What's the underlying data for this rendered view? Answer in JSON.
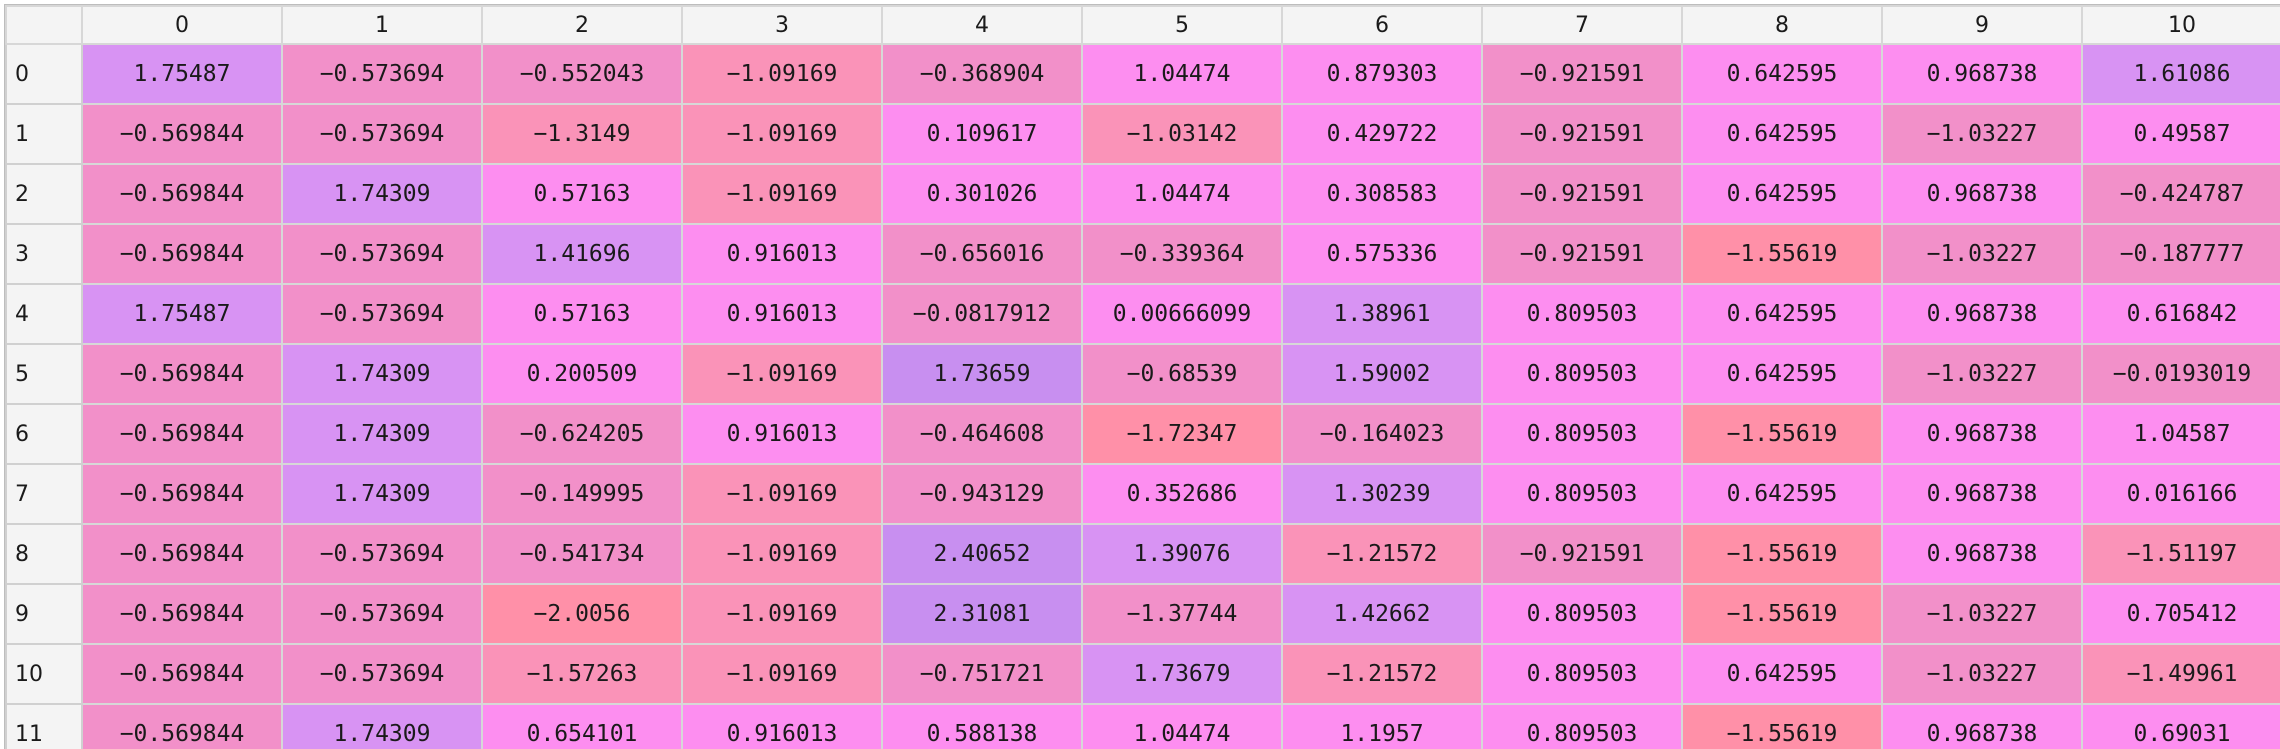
{
  "column_headers": [
    "0",
    "1",
    "2",
    "3",
    "4",
    "5",
    "6",
    "7",
    "8",
    "9",
    "10"
  ],
  "row_headers": [
    "0",
    "1",
    "2",
    "3",
    "4",
    "5",
    "6",
    "7",
    "8",
    "9",
    "10",
    "11"
  ],
  "palette": {
    "a": "#d893f3",
    "b": "#f290c9",
    "c": "#f88fd9",
    "d": "#fd8ef0",
    "e": "#e690f0",
    "f": "#c88ff0",
    "g": "#fa93b8",
    "h": "#ff90a8"
  },
  "rows": [
    [
      "1.75487",
      "−0.573694",
      "−0.552043",
      "−1.09169",
      "−0.368904",
      "1.04474",
      "0.879303",
      "−0.921591",
      "0.642595",
      "0.968738",
      "1.61086"
    ],
    [
      "−0.569844",
      "−0.573694",
      "−1.3149",
      "−1.09169",
      "0.109617",
      "−1.03142",
      "0.429722",
      "−0.921591",
      "0.642595",
      "−1.03227",
      "0.49587"
    ],
    [
      "−0.569844",
      "1.74309",
      "0.57163",
      "−1.09169",
      "0.301026",
      "1.04474",
      "0.308583",
      "−0.921591",
      "0.642595",
      "0.968738",
      "−0.424787"
    ],
    [
      "−0.569844",
      "−0.573694",
      "1.41696",
      "0.916013",
      "−0.656016",
      "−0.339364",
      "0.575336",
      "−0.921591",
      "−1.55619",
      "−1.03227",
      "−0.187777"
    ],
    [
      "1.75487",
      "−0.573694",
      "0.57163",
      "0.916013",
      "−0.0817912",
      "0.00666099",
      "1.38961",
      "0.809503",
      "0.642595",
      "0.968738",
      "0.616842"
    ],
    [
      "−0.569844",
      "1.74309",
      "0.200509",
      "−1.09169",
      "1.73659",
      "−0.68539",
      "1.59002",
      "0.809503",
      "0.642595",
      "−1.03227",
      "−0.0193019"
    ],
    [
      "−0.569844",
      "1.74309",
      "−0.624205",
      "0.916013",
      "−0.464608",
      "−1.72347",
      "−0.164023",
      "0.809503",
      "−1.55619",
      "0.968738",
      "1.04587"
    ],
    [
      "−0.569844",
      "1.74309",
      "−0.149995",
      "−1.09169",
      "−0.943129",
      "0.352686",
      "1.30239",
      "0.809503",
      "0.642595",
      "0.968738",
      "0.016166"
    ],
    [
      "−0.569844",
      "−0.573694",
      "−0.541734",
      "−1.09169",
      "2.40652",
      "1.39076",
      "−1.21572",
      "−0.921591",
      "−1.55619",
      "0.968738",
      "−1.51197"
    ],
    [
      "−0.569844",
      "−0.573694",
      "−2.0056",
      "−1.09169",
      "2.31081",
      "−1.37744",
      "1.42662",
      "0.809503",
      "−1.55619",
      "−1.03227",
      "0.705412"
    ],
    [
      "−0.569844",
      "−0.573694",
      "−1.57263",
      "−1.09169",
      "−0.751721",
      "1.73679",
      "−1.21572",
      "0.809503",
      "0.642595",
      "−1.03227",
      "−1.49961"
    ],
    [
      "−0.569844",
      "1.74309",
      "0.654101",
      "0.916013",
      "0.588138",
      "1.04474",
      "1.1957",
      "0.809503",
      "−1.55619",
      "0.968738",
      "0.69031"
    ]
  ],
  "cell_colors": [
    [
      "a",
      "b",
      "b",
      "g",
      "b",
      "d",
      "d",
      "b",
      "d",
      "d",
      "a"
    ],
    [
      "b",
      "b",
      "g",
      "g",
      "d",
      "g",
      "d",
      "b",
      "d",
      "b",
      "d"
    ],
    [
      "b",
      "a",
      "d",
      "g",
      "d",
      "d",
      "d",
      "b",
      "d",
      "d",
      "b"
    ],
    [
      "b",
      "b",
      "a",
      "d",
      "b",
      "b",
      "d",
      "b",
      "h",
      "b",
      "b"
    ],
    [
      "a",
      "b",
      "d",
      "d",
      "b",
      "d",
      "a",
      "d",
      "d",
      "d",
      "d"
    ],
    [
      "b",
      "a",
      "d",
      "g",
      "f",
      "b",
      "a",
      "d",
      "d",
      "b",
      "b"
    ],
    [
      "b",
      "a",
      "b",
      "d",
      "b",
      "h",
      "b",
      "d",
      "h",
      "d",
      "d"
    ],
    [
      "b",
      "a",
      "b",
      "g",
      "b",
      "d",
      "a",
      "d",
      "d",
      "d",
      "d"
    ],
    [
      "b",
      "b",
      "b",
      "g",
      "f",
      "a",
      "g",
      "b",
      "h",
      "d",
      "g"
    ],
    [
      "b",
      "b",
      "h",
      "g",
      "f",
      "b",
      "a",
      "d",
      "h",
      "b",
      "d"
    ],
    [
      "b",
      "b",
      "g",
      "g",
      "b",
      "a",
      "g",
      "d",
      "d",
      "b",
      "g"
    ],
    [
      "b",
      "a",
      "d",
      "d",
      "d",
      "d",
      "d",
      "d",
      "h",
      "d",
      "d"
    ]
  ]
}
